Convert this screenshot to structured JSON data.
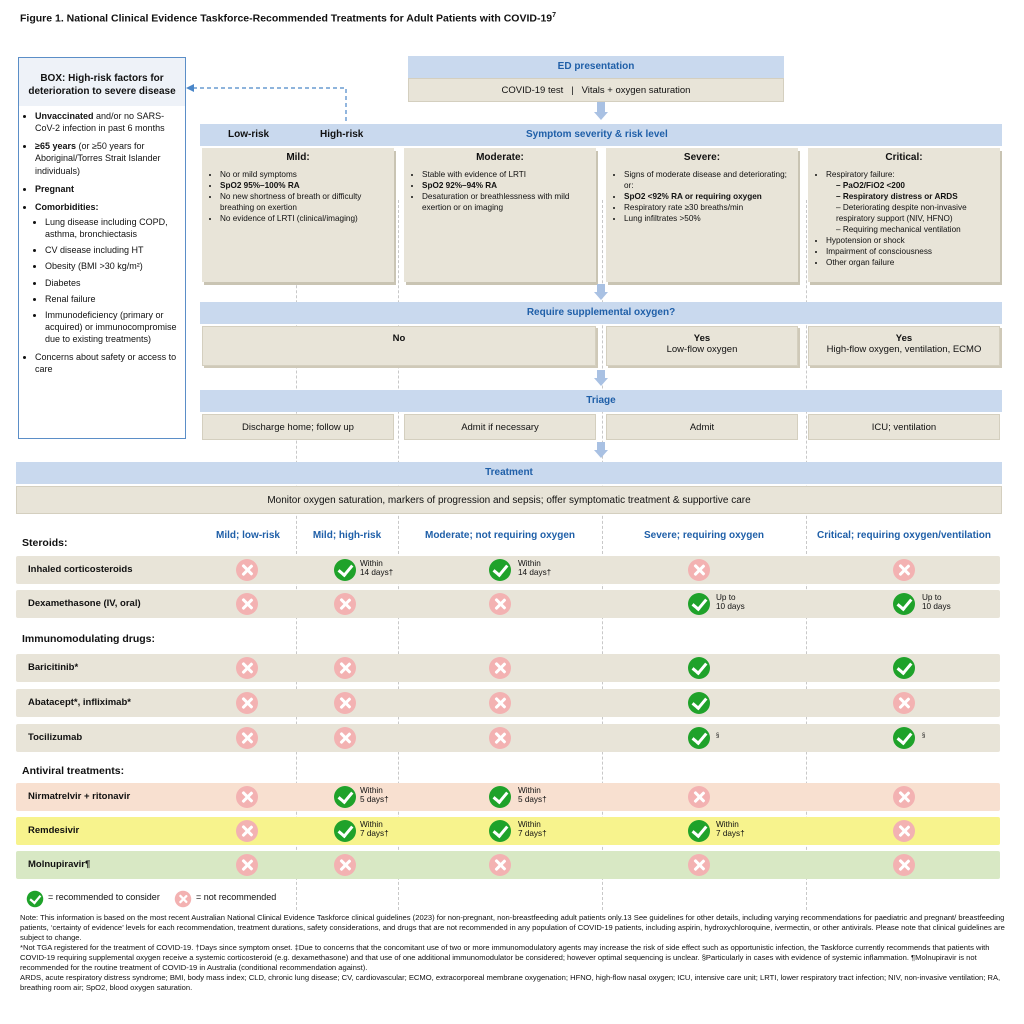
{
  "title": "Figure 1. National Clinical Evidence Taskforce-Recommended Treatments for Adult Patients with COVID-19",
  "title_sup": "7",
  "box": {
    "heading": "BOX: High-risk factors for deterioration to severe disease",
    "items": [
      {
        "bold": "Unvaccinated",
        "text": " and/or no SARS-CoV-2 infection in past 6 months"
      },
      {
        "bold": "≥65 years",
        "text": " (or ≥50 years for Aboriginal/Torres Strait Islander individuals)"
      },
      {
        "bold": "Pregnant",
        "text": ""
      },
      {
        "bold": "Comorbidities:",
        "text": ""
      },
      {
        "bold": "",
        "text": "Concerns about safety or access to care"
      }
    ],
    "comorbidities": [
      "Lung disease including COPD, asthma, bronchiectasis",
      "CV disease including HT",
      "Obesity (BMI >30 kg/m²)",
      "Diabetes",
      "Renal failure",
      "Immunodeficiency (primary or acquired) or immunocompromise due to existing treatments)"
    ]
  },
  "ed": {
    "heading": "ED presentation",
    "content": "COVID-19 test   |   Vitals + oxygen saturation"
  },
  "severity": {
    "heading": "Symptom severity & risk level",
    "low": "Low-risk",
    "high": "High-risk",
    "mild": {
      "title": "Mild:",
      "items": [
        "No or mild symptoms",
        "SpO2 95%–100% RA",
        "No new shortness of breath or difficulty breathing on exertion",
        "No evidence of LRTI (clinical/imaging)"
      ]
    },
    "moderate": {
      "title": "Moderate:",
      "items": [
        "Stable with evidence of LRTI",
        "SpO2 92%–94% RA",
        "Desaturation or breathlessness with mild exertion or on imaging"
      ]
    },
    "severe": {
      "title": "Severe:",
      "items": [
        "Signs of moderate disease and deteriorating; or:",
        "SpO2 <92% RA or requiring oxygen",
        "Respiratory rate ≥30 breaths/min",
        "Lung infiltrates >50%"
      ]
    },
    "critical": {
      "title": "Critical:",
      "intro": "Respiratory failure:",
      "sub": [
        "PaO2/FiO2 <200",
        "Respiratory distress or ARDS",
        "Deteriorating despite non-invasive respiratory support (NIV, HFNO)",
        "Requiring mechanical ventilation"
      ],
      "items": [
        "Hypotension or shock",
        "Impairment of consciousness",
        "Other organ failure"
      ]
    }
  },
  "oxygen": {
    "heading": "Require supplemental oxygen?",
    "no": "No",
    "yes1": "Yes",
    "yes1_sub": "Low-flow oxygen",
    "yes2": "Yes",
    "yes2_sub": "High-flow oxygen, ventilation, ECMO"
  },
  "triage": {
    "heading": "Triage",
    "c1": "Discharge home; follow up",
    "c2": "Admit if necessary",
    "c3": "Admit",
    "c4": "ICU; ventilation"
  },
  "treatment": {
    "heading": "Treatment",
    "content": "Monitor oxygen saturation, markers of progression and sepsis; offer symptomatic treatment & supportive care"
  },
  "columns": [
    "Mild; low-risk",
    "Mild; high-risk",
    "Moderate; not requiring oxygen",
    "Severe; requiring oxygen",
    "Critical; requiring oxygen/ventilation"
  ],
  "sections": {
    "steroids": "Steroids:",
    "immuno": "Immunomodulating drugs:",
    "antiviral": "Antiviral treatments:"
  },
  "rows": {
    "inhaled": "Inhaled corticosteroids",
    "dexa": "Dexamethasone (IV, oral)",
    "bari": "Baricitinib*",
    "abata": "Abatacept*, infliximab*",
    "toci": "Tocilizumab",
    "nirma": "Nirmatrelvir + ritonavir",
    "remde": "Remdesivir",
    "molnu": "Molnupiravir¶"
  },
  "notes": {
    "within14": "Within",
    "days14": "14 days†",
    "upto": "Up to",
    "days10": "10 days",
    "within5": "Within",
    "days5": "5 days†",
    "within7": "Within",
    "days7": "7 days†",
    "sect": "§"
  },
  "legend": {
    "yes": "= recommended to consider",
    "no": "= not recommended"
  },
  "footnotes": [
    "Note: This information is based on the most recent Australian National Clinical Evidence Taskforce clinical guidelines (2023) for non-pregnant, non-breastfeeding adult patients only.13 See guidelines for other details, including varying recommendations for paediatric and pregnant/ breastfeeding patients, ‘certainty of evidence’ levels for each recommendation, treatment durations, safety considerations, and drugs that are not recommended in any population of COVID-19 patients, including aspirin, hydroxychloroquine, ivermectin, or other antivirals. Please note that clinical guidelines are subject to change.",
    "*Not TGA registered for the treatment of COVID-19. †Days since symptom onset. ‡Due to concerns that the concomitant use of two or more immunomodulatory agents may increase the risk of side effect such as opportunistic infection, the Taskforce currently recommends that patients with COVID-19 requiring supplemental oxygen receive a systemic corticosteroid (e.g. dexamethasone) and that use of one additional immunomodulator be considered; however optimal sequencing is unclear. §Particularly in cases with evidence of systemic inflammation. ¶Molnupiravir is not recommended for the routine treatment of COVID-19 in Australia (conditional recommendation against).",
    "ARDS, acute respiratory distress syndrome; BMI, body mass index; CLD, chronic lung disease; CV, cardiovascular; ECMO, extracorporeal membrane oxygenation; HFNO, high-flow nasal oxygen; ICU, intensive care unit; LRTI, lower respiratory tract infection; NIV, non-invasive ventilation; RA, breathing room air; SpO2, blood oxygen saturation."
  ],
  "colors": {
    "blue_head": "#c9d9ee",
    "tan": "#e8e4d8",
    "peach": "#f8e0d0",
    "yellow": "#f7f38d",
    "green": "#d8e8c4",
    "check": "#1fa22a",
    "cross": "#f3b2b2"
  }
}
